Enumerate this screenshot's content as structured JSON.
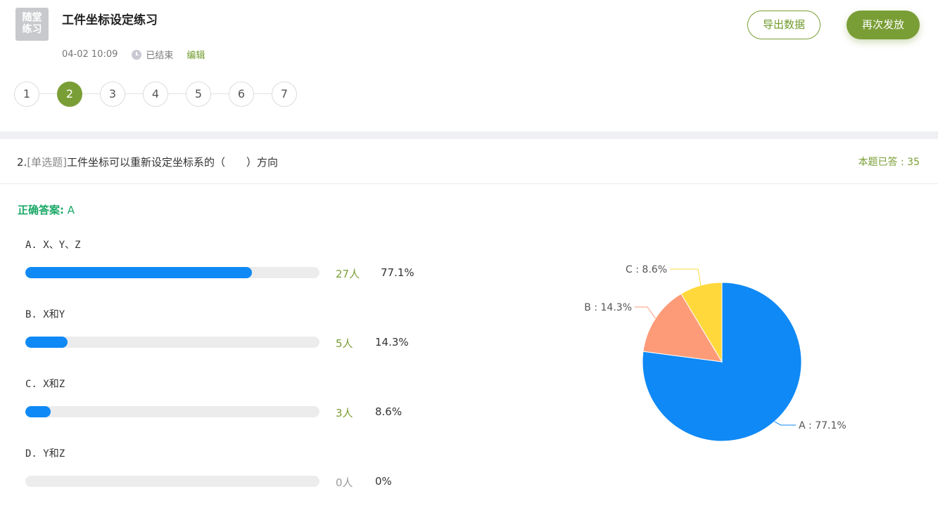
{
  "header": {
    "logo_line1": "随堂",
    "logo_line2": "练习",
    "title": "工件坐标设定练习",
    "date": "04-02 10:09",
    "status": "已结束",
    "edit_label": "编辑",
    "export_label": "导出数据",
    "redistribute_label": "再次发放"
  },
  "steps": [
    "1",
    "2",
    "3",
    "4",
    "5",
    "6",
    "7"
  ],
  "active_step": "2",
  "question": {
    "number": "2.",
    "type": "[单选题]",
    "text": "工件坐标可以重新设定坐标系的（　　）方向",
    "answered_label": "本题已答 : 35"
  },
  "correct_answer": {
    "label": "正确答案:",
    "value": "A"
  },
  "options": [
    {
      "label": "A. X、Y、Z",
      "count": "27人",
      "percent": "77.1%",
      "fraction": 0.771
    },
    {
      "label": "B. X和Y",
      "count": "5人",
      "percent": "14.3%",
      "fraction": 0.143
    },
    {
      "label": "C. X和Z",
      "count": "3人",
      "percent": "8.6%",
      "fraction": 0.086
    },
    {
      "label": "D. Y和Z",
      "count": "0人",
      "percent": "0%",
      "fraction": 0
    }
  ],
  "chart_data": {
    "type": "pie",
    "slices": [
      {
        "name": "A",
        "label": "A : 77.1%",
        "value": 77.1,
        "color": "#0f89f5"
      },
      {
        "name": "B",
        "label": "B : 14.3%",
        "value": 14.3,
        "color": "#fd9b79"
      },
      {
        "name": "C",
        "label": "C : 8.6%",
        "value": 8.6,
        "color": "#ffd83c"
      }
    ]
  }
}
